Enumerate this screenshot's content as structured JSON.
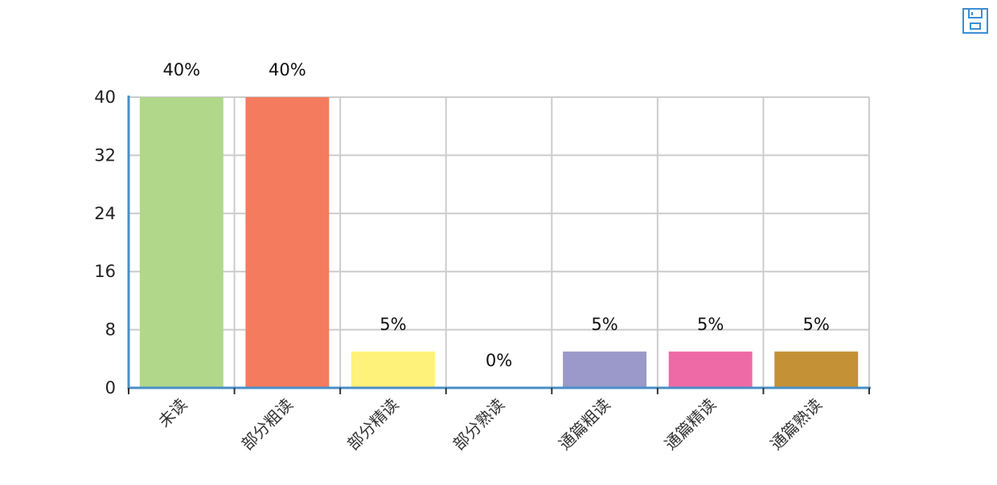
{
  "toolbar": {
    "save_icon": "save-icon"
  },
  "chart_data": {
    "type": "bar",
    "categories": [
      "未读",
      "部分粗读",
      "部分精读",
      "部分熟读",
      "通篇粗读",
      "通篇精读",
      "通篇熟读"
    ],
    "values": [
      40,
      40,
      5,
      0,
      5,
      5,
      5
    ],
    "data_labels": [
      "40%",
      "40%",
      "5%",
      "0%",
      "5%",
      "5%",
      "5%"
    ],
    "colors": [
      "#b0d78a",
      "#f47b5e",
      "#fff27a",
      "#cccccc",
      "#9a99c9",
      "#ee6aa6",
      "#c59136"
    ],
    "ylim": [
      0,
      40
    ],
    "yticks": [
      0,
      8,
      16,
      24,
      32,
      40
    ],
    "grid": true,
    "axis_color": "#4a8fc7"
  }
}
